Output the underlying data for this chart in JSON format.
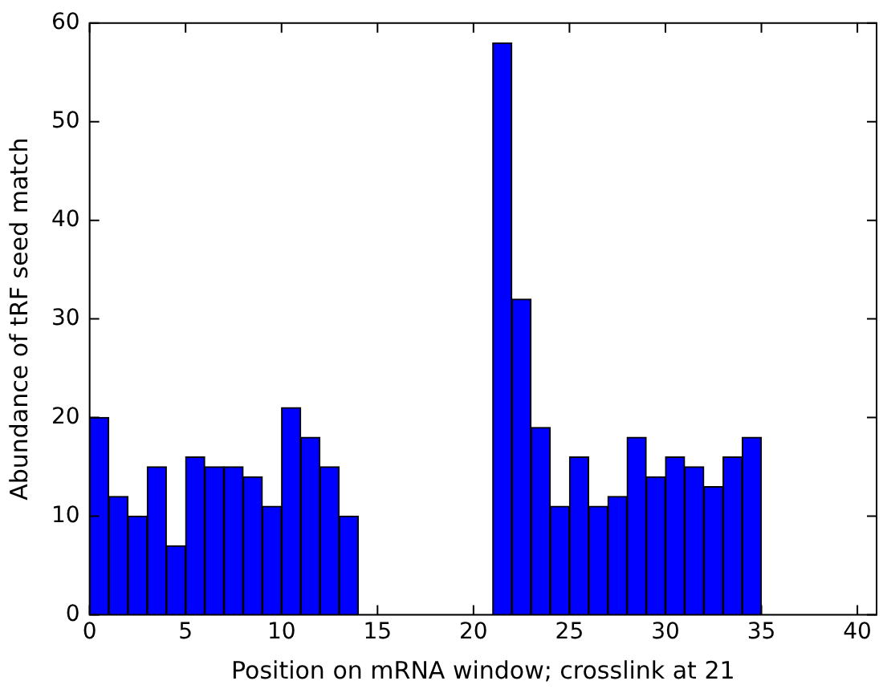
{
  "chart_data": {
    "type": "histogram",
    "xlabel": "Position on mRNA window; crosslink at 21",
    "ylabel": "Abundance of tRF seed match",
    "bins": [
      0,
      1,
      2,
      3,
      4,
      5,
      6,
      7,
      8,
      9,
      10,
      11,
      12,
      13,
      14,
      15,
      16,
      17,
      18,
      19,
      20,
      21,
      22,
      23,
      24,
      25,
      26,
      27,
      28,
      29,
      30,
      31,
      32,
      33,
      34,
      35
    ],
    "values": [
      20,
      12,
      10,
      15,
      7,
      16,
      15,
      15,
      14,
      11,
      21,
      18,
      15,
      10,
      0,
      0,
      0,
      0,
      0,
      0,
      0,
      58,
      32,
      19,
      11,
      16,
      11,
      12,
      18,
      14,
      16,
      15,
      13,
      16,
      18
    ],
    "color": "#0000ff",
    "xlim": [
      0,
      41
    ],
    "xticks": [
      0,
      5,
      10,
      15,
      20,
      25,
      30,
      35,
      40
    ],
    "ylim": [
      0,
      60
    ],
    "yticks": [
      0,
      10,
      20,
      30,
      40,
      50,
      60
    ],
    "grid": false,
    "legend": false
  }
}
